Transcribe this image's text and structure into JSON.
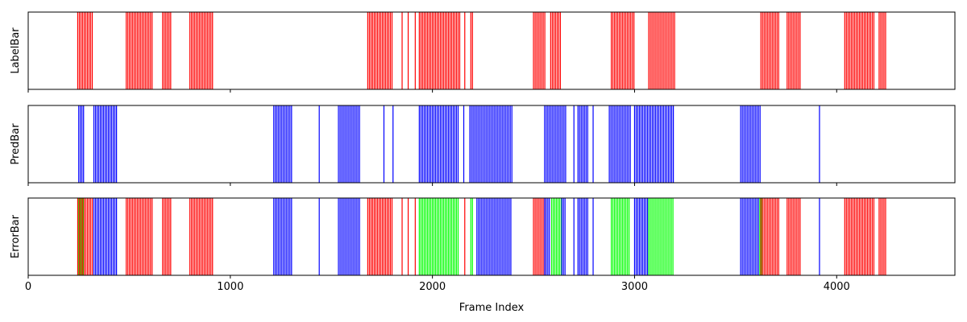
{
  "chart_data": [
    {
      "type": "bar",
      "ylabel": "LabelBar",
      "xlim": [
        0,
        4585
      ],
      "show_x_ticklabels": false,
      "color": "#ff0000",
      "ranges": [
        [
          245,
          320
        ],
        [
          485,
          620
        ],
        [
          665,
          705
        ],
        [
          800,
          915
        ],
        [
          1680,
          1800
        ],
        [
          1935,
          2135
        ],
        [
          2190,
          2205
        ],
        [
          2500,
          2560
        ],
        [
          2585,
          2640
        ],
        [
          2885,
          3000
        ],
        [
          3070,
          3200
        ],
        [
          3625,
          3720
        ],
        [
          3755,
          3820
        ],
        [
          4040,
          4190
        ],
        [
          4210,
          4245
        ]
      ],
      "lines": [
        1850,
        1880,
        1915,
        2160
      ]
    },
    {
      "type": "bar",
      "ylabel": "PredBar",
      "xlim": [
        0,
        4585
      ],
      "show_x_ticklabels": false,
      "color": "#0000ff",
      "ranges": [
        [
          250,
          275
        ],
        [
          325,
          440
        ],
        [
          1215,
          1305
        ],
        [
          1535,
          1640
        ],
        [
          1935,
          2130
        ],
        [
          2185,
          2395
        ],
        [
          2555,
          2660
        ],
        [
          2720,
          2775
        ],
        [
          2875,
          2980
        ],
        [
          3000,
          3195
        ],
        [
          3525,
          3625
        ]
      ],
      "lines": [
        1440,
        1760,
        1805,
        2155,
        2700,
        2795,
        3915
      ]
    },
    {
      "type": "bar",
      "ylabel": "ErrorBar",
      "xlim": [
        0,
        4585
      ],
      "xticks": [
        0,
        1000,
        2000,
        3000,
        4000
      ],
      "xlabel": "Frame Index",
      "segments": [
        {
          "color": "#00ff00",
          "ranges": [
            [
              250,
              275
            ],
            [
              1935,
              2130
            ],
            [
              2190,
              2205
            ],
            [
              2590,
              2640
            ],
            [
              2885,
              2980
            ],
            [
              3070,
              3195
            ],
            [
              3620,
              3630
            ]
          ]
        },
        {
          "color": "#ff0000",
          "ranges": [
            [
              245,
              320
            ],
            [
              485,
              620
            ],
            [
              665,
              705
            ],
            [
              800,
              915
            ],
            [
              1680,
              1800
            ],
            [
              2500,
              2560
            ],
            [
              3625,
              3720
            ],
            [
              3755,
              3820
            ],
            [
              4040,
              4190
            ],
            [
              4210,
              4245
            ]
          ],
          "lines": [
            1850,
            1880,
            1915,
            2160
          ]
        },
        {
          "color": "#0000ff",
          "ranges": [
            [
              325,
              440
            ],
            [
              1215,
              1305
            ],
            [
              1535,
              1640
            ],
            [
              2220,
              2395
            ],
            [
              2555,
              2585
            ],
            [
              2640,
              2660
            ],
            [
              2720,
              2775
            ],
            [
              3000,
              3065
            ],
            [
              3525,
              3620
            ]
          ],
          "lines": [
            1440,
            2700,
            2795,
            3915
          ]
        }
      ]
    }
  ]
}
